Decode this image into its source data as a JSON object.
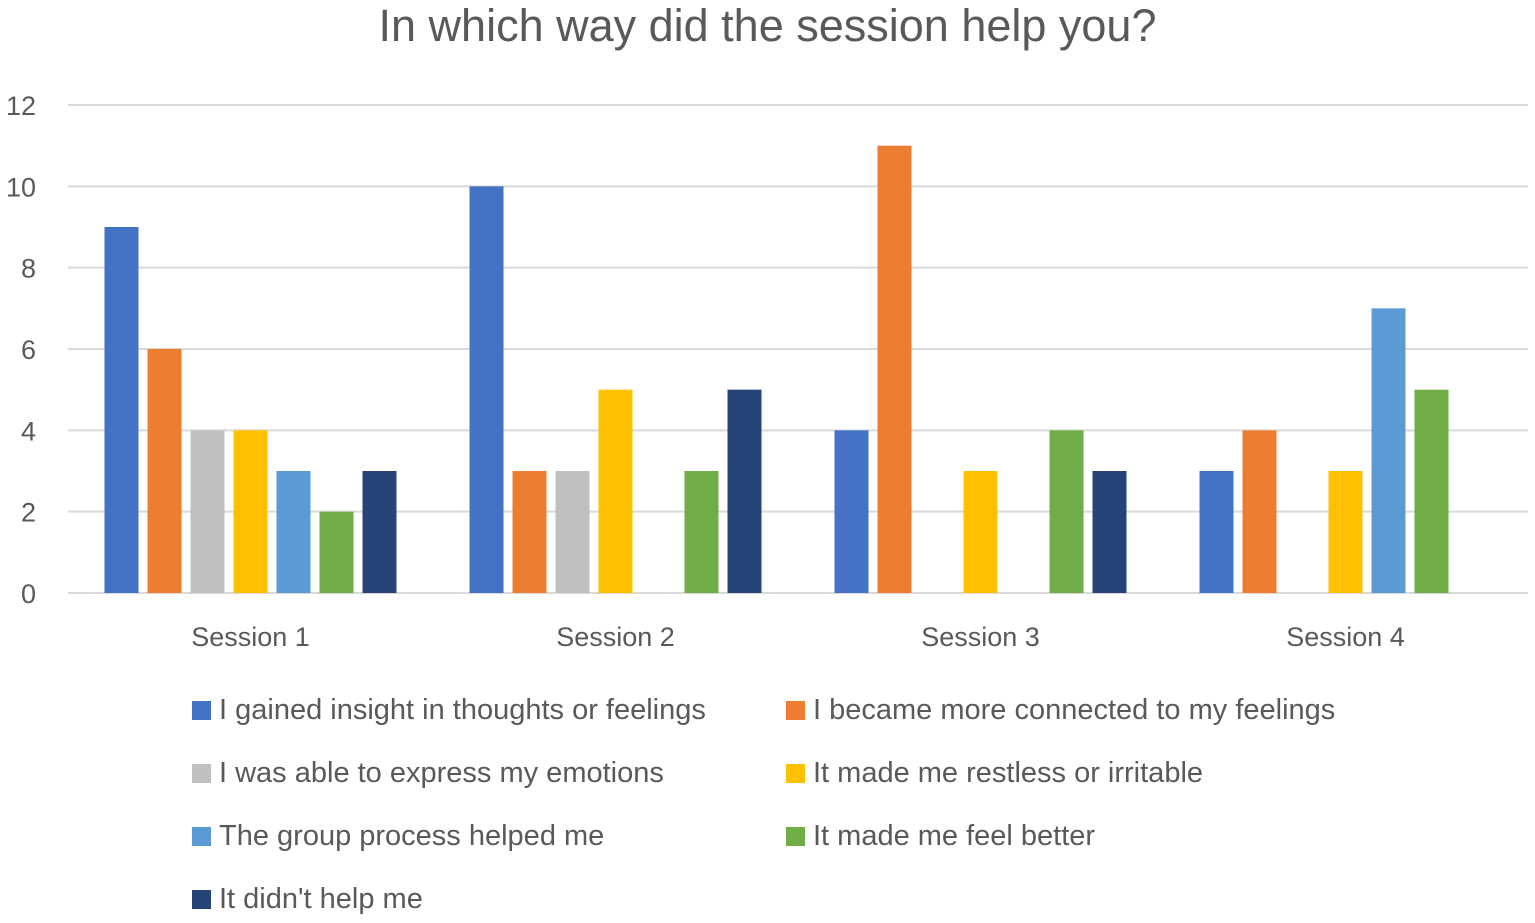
{
  "chart_data": {
    "type": "bar",
    "title": "In which way did the session help you?",
    "categories": [
      "Session 1",
      "Session 2",
      "Session 3",
      "Session 4"
    ],
    "ylim": [
      0,
      12
    ],
    "yticks": [
      "0",
      "2",
      "4",
      "6",
      "8",
      "10",
      "12"
    ],
    "grid": true,
    "legend_position": "bottom",
    "series": [
      {
        "name": "I gained insight in thoughts or feelings",
        "color": "#4472C4",
        "values": [
          9,
          10,
          4,
          3
        ]
      },
      {
        "name": "I became more connected to my feelings",
        "color": "#ED7D31",
        "values": [
          6,
          3,
          11,
          4
        ]
      },
      {
        "name": "I was able to express my emotions",
        "color": "#BFBFBF",
        "values": [
          4,
          3,
          0,
          0
        ]
      },
      {
        "name": "It made me restless or irritable",
        "color": "#FFC000",
        "values": [
          4,
          5,
          3,
          3
        ]
      },
      {
        "name": "The group process helped me",
        "color": "#5B9BD5",
        "values": [
          3,
          0,
          0,
          7
        ]
      },
      {
        "name": "It made me feel better",
        "color": "#70AD47",
        "values": [
          2,
          3,
          4,
          5
        ]
      },
      {
        "name": "It didn't help me",
        "color": "#264478",
        "values": [
          3,
          5,
          3,
          0
        ]
      }
    ]
  }
}
